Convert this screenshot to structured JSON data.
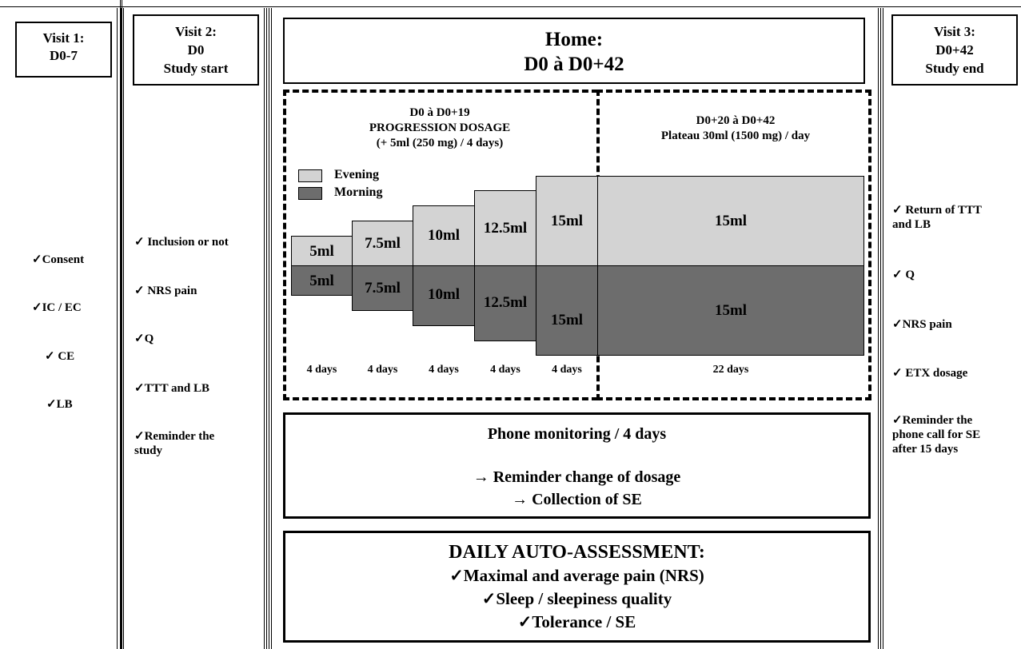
{
  "visit1": {
    "title_lines": [
      "Visit 1:",
      "D0-7"
    ],
    "items": [
      "✓Consent",
      "✓IC / EC",
      "✓ CE",
      "✓LB"
    ]
  },
  "visit2": {
    "title_lines": [
      "Visit 2:",
      "D0",
      "Study start"
    ],
    "items": [
      "✓ Inclusion or not",
      "✓ NRS pain",
      "✓Q",
      "✓TTT and LB",
      "✓Reminder the study"
    ]
  },
  "home": {
    "title_lines": [
      "Home:",
      "D0 à D0+42"
    ]
  },
  "progression": {
    "title_lines": [
      "D0 à D0+19",
      "PROGRESSION DOSAGE",
      "(+ 5ml (250 mg) / 4 days)"
    ],
    "legend": {
      "evening": "Evening",
      "morning": "Morning"
    },
    "steps": [
      {
        "evening": "5ml",
        "morning": "5ml",
        "duration": "4 days"
      },
      {
        "evening": "7.5ml",
        "morning": "7.5ml",
        "duration": "4 days"
      },
      {
        "evening": "10ml",
        "morning": "10ml",
        "duration": "4 days"
      },
      {
        "evening": "12.5ml",
        "morning": "12.5ml",
        "duration": "4 days"
      },
      {
        "evening": "15ml",
        "morning": "15ml",
        "duration": "4 days"
      }
    ]
  },
  "plateau": {
    "title_lines": [
      "D0+20 à D0+42",
      "Plateau 30ml (1500 mg) / day"
    ],
    "evening": "15ml",
    "morning": "15ml",
    "duration": "22 days"
  },
  "phone": {
    "title": "Phone monitoring / 4 days",
    "line1": "→ Reminder change of dosage",
    "line2": "→ Collection of SE"
  },
  "daily": {
    "title": "DAILY AUTO-ASSESSMENT:",
    "items": [
      "✓Maximal and average pain (NRS)",
      "✓Sleep / sleepiness quality",
      "✓Tolerance / SE"
    ]
  },
  "visit3": {
    "title_lines": [
      "Visit 3:",
      "D0+42",
      "Study end"
    ],
    "items": [
      "✓ Return of TTT and LB",
      "✓ Q",
      "✓NRS pain",
      "✓ ETX dosage",
      "✓Reminder the phone call for SE after 15 days"
    ]
  },
  "colors": {
    "light": "#d3d3d3",
    "dark": "#6d6d6d"
  }
}
